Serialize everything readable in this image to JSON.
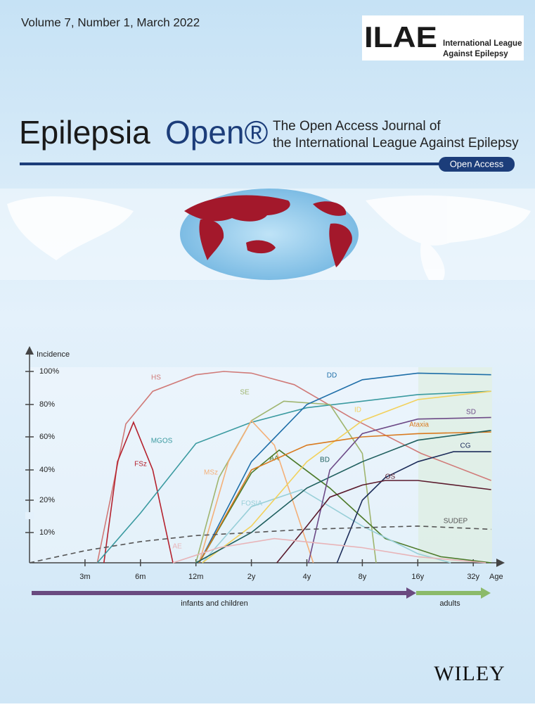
{
  "header": {
    "issue": "Volume 7, Number 1, March 2022",
    "logo_mark": "ILAE",
    "logo_line1": "International League",
    "logo_line2": "Against Epilepsy",
    "journal_name": "Epilepsia",
    "journal_name_accent": "Open®",
    "tagline1": "The Open Access Journal of",
    "tagline2": "the International League Against Epilepsy",
    "badge": "Open Access"
  },
  "chart_data": {
    "type": "line",
    "y_label": "Incidence",
    "x_label": "Age",
    "log_x": true,
    "xlim": [
      1.5,
      540
    ],
    "ylim": [
      0,
      100
    ],
    "xticks": [
      {
        "value": 3,
        "label": "3m"
      },
      {
        "value": 6,
        "label": "6m"
      },
      {
        "value": 12,
        "label": "12m"
      },
      {
        "value": 24,
        "label": "2y"
      },
      {
        "value": 48,
        "label": "4y"
      },
      {
        "value": 96,
        "label": "8y"
      },
      {
        "value": 192,
        "label": "16y"
      },
      {
        "value": 384,
        "label": "32y"
      }
    ],
    "yticks": [
      {
        "value": 10,
        "label": "10%"
      },
      {
        "value": 20,
        "label": "20%"
      },
      {
        "value": 40,
        "label": "40%"
      },
      {
        "value": 60,
        "label": "60%"
      },
      {
        "value": 80,
        "label": "80%"
      },
      {
        "value": 100,
        "label": "100%"
      }
    ],
    "series": [
      {
        "name": "HS",
        "color": "#d07a78",
        "x": [
          3.5,
          5,
          7,
          12,
          17,
          24,
          41,
          83,
          200,
          480
        ],
        "values": [
          0,
          68,
          88,
          98,
          100,
          99,
          92,
          72,
          50,
          33
        ]
      },
      {
        "name": "FSz",
        "color": "#b5222e",
        "x": [
          3.8,
          4.5,
          5.5,
          7,
          9
        ],
        "values": [
          0,
          45,
          69,
          40,
          0
        ]
      },
      {
        "name": "MGOS",
        "color": "#3a9aa0",
        "x": [
          3.5,
          6,
          12,
          24,
          48,
          96,
          192,
          480
        ],
        "values": [
          0,
          16,
          56,
          69,
          78,
          82,
          86,
          88
        ]
      },
      {
        "name": "SE",
        "color": "#9fb56f",
        "x": [
          12,
          16,
          24,
          36,
          64,
          96,
          114
        ],
        "values": [
          0,
          35,
          70,
          82,
          80,
          50,
          0
        ]
      },
      {
        "name": "MSz",
        "color": "#f4b078",
        "x": [
          12.5,
          18,
          24,
          32,
          52
        ],
        "values": [
          0,
          45,
          70,
          55,
          0
        ]
      },
      {
        "name": "AA",
        "color": "#4d7a2a",
        "x": [
          12.5,
          24,
          34,
          64,
          128,
          256,
          480
        ],
        "values": [
          0,
          38,
          52,
          28,
          8,
          2,
          0
        ]
      },
      {
        "name": "FOSIA",
        "color": "#98cfd8",
        "x": [
          13,
          24,
          45,
          96,
          192,
          290
        ],
        "values": [
          0,
          18,
          27,
          12,
          3,
          0
        ]
      },
      {
        "name": "DD",
        "color": "#1e6ea8",
        "x": [
          12.5,
          24,
          48,
          96,
          192,
          480
        ],
        "values": [
          0,
          45,
          80,
          95,
          99,
          98
        ]
      },
      {
        "name": "ID",
        "color": "#f2d15c",
        "x": [
          13,
          24,
          48,
          96,
          192,
          480
        ],
        "values": [
          0,
          12,
          45,
          70,
          83,
          88
        ]
      },
      {
        "name": "Ataxia",
        "color": "#d97a1f",
        "x": [
          12.5,
          24,
          48,
          96,
          192,
          480
        ],
        "values": [
          0,
          40,
          55,
          60,
          62,
          63
        ]
      },
      {
        "name": "BD",
        "color": "#1f5f5e",
        "x": [
          12,
          24,
          48,
          96,
          192,
          480
        ],
        "values": [
          0,
          10,
          28,
          45,
          58,
          64
        ]
      },
      {
        "name": "SD",
        "color": "#6d4a87",
        "x": [
          49,
          64,
          96,
          192,
          480
        ],
        "values": [
          0,
          40,
          62,
          71,
          72
        ]
      },
      {
        "name": "CG",
        "color": "#1d2d5a",
        "x": [
          70,
          96,
          128,
          192,
          300,
          480
        ],
        "values": [
          0,
          20,
          35,
          45,
          51,
          51
        ]
      },
      {
        "name": "OS",
        "color": "#5a1a2c",
        "x": [
          33,
          48,
          64,
          96,
          128,
          192,
          480
        ],
        "values": [
          0,
          12,
          22,
          30,
          33,
          33,
          27
        ]
      },
      {
        "name": "AE",
        "color": "#e8b4b8",
        "x": [
          9,
          16,
          32,
          96,
          192,
          450
        ],
        "values": [
          0,
          5,
          8,
          5,
          2,
          0
        ]
      },
      {
        "name": "SUDEP",
        "color": "#555555",
        "style": "dashed",
        "x": [
          1.5,
          3,
          6,
          12,
          24,
          48,
          96,
          192,
          480
        ],
        "values": [
          0,
          4,
          7,
          9,
          10,
          11,
          11.5,
          12,
          11
        ]
      }
    ],
    "phases": [
      "infants and children",
      "adults"
    ]
  },
  "footer": {
    "publisher": "WILEY"
  }
}
